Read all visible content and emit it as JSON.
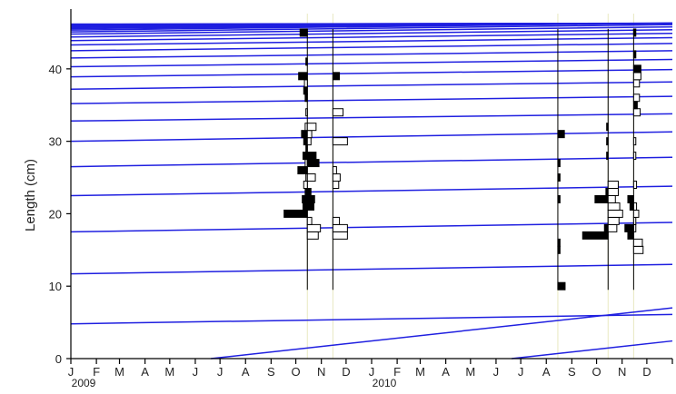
{
  "chart_data": {
    "type": "line",
    "title": "",
    "xlabel": "",
    "ylabel": "Length (cm)",
    "grid": false,
    "legend": "none",
    "ylim": [
      0,
      47
    ],
    "yticks": [
      0,
      10,
      20,
      30,
      40
    ],
    "xlim": [
      "2009-01-01",
      "2011-01-01"
    ],
    "x_tick_labels": [
      "J",
      "F",
      "M",
      "A",
      "M",
      "J",
      "J",
      "A",
      "S",
      "O",
      "N",
      "D",
      "J",
      "F",
      "M",
      "A",
      "M",
      "J",
      "J",
      "A",
      "S",
      "O",
      "N",
      "D"
    ],
    "year_labels": [
      {
        "label": "2009",
        "date": "2009-01-01"
      },
      {
        "label": "2010",
        "date": "2010-01-01"
      }
    ],
    "colors": {
      "growth_curve": "#1f1fe0",
      "axis": "#000000",
      "sample_line": "#000000",
      "sample_guide": "#e8e8c0"
    },
    "growth_curves": {
      "curve_count": 28,
      "description_free": true,
      "start_dates": [
        "2009-06-20",
        "2010-06-20"
      ],
      "left_edge_y": [
        4.8,
        11.7,
        17.5,
        22.5,
        26.5,
        30.0,
        32.8,
        35.2,
        37.2,
        38.9,
        40.3,
        41.5,
        42.5,
        43.3,
        43.9,
        44.4,
        44.8,
        45.1,
        45.35,
        45.55,
        45.7,
        45.82,
        45.92,
        46.0,
        46.06,
        46.11,
        46.15,
        46.18
      ],
      "right_edge_y": [
        4.8,
        11.7,
        17.5,
        22.5,
        26.5,
        30.0,
        32.8,
        35.2,
        37.2,
        38.9,
        40.3,
        41.5,
        42.5,
        43.3,
        43.9,
        44.4,
        44.8,
        45.1,
        45.35,
        45.55,
        45.7,
        45.82,
        45.92,
        46.0,
        46.06,
        46.11,
        46.15,
        46.18
      ]
    },
    "samples": [
      {
        "date": "2009-10-15",
        "bins": [
          {
            "y": 20,
            "value": 3.2,
            "fill": "black"
          },
          {
            "y": 21,
            "value": 0.6,
            "fill": "black"
          },
          {
            "y": 22,
            "value": 0.7,
            "fill": "black"
          },
          {
            "y": 23,
            "value": 0.3,
            "fill": "black"
          },
          {
            "y": 24,
            "value": 0.5,
            "fill": "white"
          },
          {
            "y": 25,
            "value": 0.2,
            "fill": "white"
          },
          {
            "y": 26,
            "value": 1.3,
            "fill": "black"
          },
          {
            "y": 27,
            "value": 0.3,
            "fill": "white"
          },
          {
            "y": 28,
            "value": 0.6,
            "fill": "black"
          },
          {
            "y": 29,
            "value": 0.2,
            "fill": "black"
          },
          {
            "y": 30,
            "value": 0.5,
            "fill": "black"
          },
          {
            "y": 31,
            "value": 0.8,
            "fill": "black"
          },
          {
            "y": 32,
            "value": 0.3,
            "fill": "white"
          },
          {
            "y": 34,
            "value": 0.2,
            "fill": "white"
          },
          {
            "y": 36,
            "value": 0.3,
            "fill": "black"
          },
          {
            "y": 37,
            "value": 0.5,
            "fill": "black"
          },
          {
            "y": 38,
            "value": 0.4,
            "fill": "white"
          },
          {
            "y": 39,
            "value": 1.2,
            "fill": "black"
          },
          {
            "y": 41,
            "value": 0.2,
            "fill": "black"
          },
          {
            "y": 45,
            "value": 1.0,
            "fill": "black"
          }
        ],
        "bins_right": [
          {
            "y": 17,
            "value": 1.5,
            "fill": "white"
          },
          {
            "y": 18,
            "value": 1.8,
            "fill": "white"
          },
          {
            "y": 19,
            "value": 0.6,
            "fill": "white"
          },
          {
            "y": 21,
            "value": 0.9,
            "fill": "black"
          },
          {
            "y": 22,
            "value": 1.0,
            "fill": "black"
          },
          {
            "y": 23,
            "value": 0.5,
            "fill": "black"
          },
          {
            "y": 25,
            "value": 1.1,
            "fill": "white"
          },
          {
            "y": 27,
            "value": 1.6,
            "fill": "black"
          },
          {
            "y": 28,
            "value": 1.2,
            "fill": "black"
          },
          {
            "y": 30,
            "value": 0.5,
            "fill": "white"
          },
          {
            "y": 31,
            "value": 0.6,
            "fill": "white"
          },
          {
            "y": 32,
            "value": 1.2,
            "fill": "white"
          }
        ]
      },
      {
        "date": "2009-11-15",
        "bins": [
          {
            "y": 17,
            "value": 2.0,
            "fill": "white"
          },
          {
            "y": 18,
            "value": 2.0,
            "fill": "white"
          },
          {
            "y": 19,
            "value": 0.9,
            "fill": "white"
          },
          {
            "y": 24,
            "value": 0.8,
            "fill": "white"
          },
          {
            "y": 25,
            "value": 1.0,
            "fill": "white"
          },
          {
            "y": 26,
            "value": 0.5,
            "fill": "white"
          },
          {
            "y": 30,
            "value": 2.0,
            "fill": "white"
          },
          {
            "y": 34,
            "value": 1.4,
            "fill": "white"
          },
          {
            "y": 39,
            "value": 0.9,
            "fill": "black"
          }
        ]
      },
      {
        "date": "2010-08-15",
        "bins": [
          {
            "y": 10,
            "value": 1.0,
            "fill": "black"
          },
          {
            "y": 15,
            "value": 0.3,
            "fill": "black"
          },
          {
            "y": 16,
            "value": 0.3,
            "fill": "black"
          },
          {
            "y": 22,
            "value": 0.3,
            "fill": "black"
          },
          {
            "y": 25,
            "value": 0.3,
            "fill": "black"
          },
          {
            "y": 27,
            "value": 0.3,
            "fill": "black"
          },
          {
            "y": 31,
            "value": 0.9,
            "fill": "black"
          }
        ]
      },
      {
        "date": "2010-10-15",
        "bins": [
          {
            "y": 17,
            "value": 3.5,
            "fill": "black"
          },
          {
            "y": 18,
            "value": 0.5,
            "fill": "black"
          },
          {
            "y": 22,
            "value": 1.8,
            "fill": "black"
          },
          {
            "y": 23,
            "value": 0.3,
            "fill": "black"
          },
          {
            "y": 28,
            "value": 0.2,
            "fill": "black"
          },
          {
            "y": 30,
            "value": 0.2,
            "fill": "black"
          },
          {
            "y": 32,
            "value": 0.2,
            "fill": "black"
          }
        ],
        "bins_right": [
          {
            "y": 18,
            "value": 1.2,
            "fill": "white"
          },
          {
            "y": 19,
            "value": 1.5,
            "fill": "white"
          },
          {
            "y": 20,
            "value": 2.0,
            "fill": "white"
          },
          {
            "y": 21,
            "value": 1.6,
            "fill": "white"
          },
          {
            "y": 22,
            "value": 1.0,
            "fill": "white"
          },
          {
            "y": 23,
            "value": 1.4,
            "fill": "white"
          },
          {
            "y": 24,
            "value": 1.4,
            "fill": "white"
          }
        ]
      },
      {
        "date": "2010-11-15",
        "bins": [
          {
            "y": 15,
            "value": 1.3,
            "fill": "white"
          },
          {
            "y": 16,
            "value": 1.2,
            "fill": "white"
          },
          {
            "y": 18,
            "value": 0.3,
            "fill": "white"
          },
          {
            "y": 19,
            "value": 0.3,
            "fill": "white"
          },
          {
            "y": 20,
            "value": 0.7,
            "fill": "white"
          },
          {
            "y": 21,
            "value": 0.4,
            "fill": "white"
          },
          {
            "y": 24,
            "value": 0.4,
            "fill": "white"
          },
          {
            "y": 28,
            "value": 0.3,
            "fill": "white"
          },
          {
            "y": 30,
            "value": 0.3,
            "fill": "white"
          },
          {
            "y": 34,
            "value": 0.9,
            "fill": "white"
          },
          {
            "y": 36,
            "value": 0.8,
            "fill": "white"
          },
          {
            "y": 38,
            "value": 0.8,
            "fill": "white"
          },
          {
            "y": 39,
            "value": 1.0,
            "fill": "white"
          },
          {
            "y": 40,
            "value": 1.0,
            "fill": "black"
          },
          {
            "y": 35,
            "value": 0.5,
            "fill": "black"
          },
          {
            "y": 42,
            "value": 0.3,
            "fill": "black"
          },
          {
            "y": 45,
            "value": 0.3,
            "fill": "black"
          }
        ],
        "bins_left": [
          {
            "y": 17,
            "value": 0.8,
            "fill": "black"
          },
          {
            "y": 18,
            "value": 1.2,
            "fill": "black"
          },
          {
            "y": 21,
            "value": 0.5,
            "fill": "black"
          },
          {
            "y": 22,
            "value": 0.8,
            "fill": "black"
          }
        ]
      }
    ]
  }
}
